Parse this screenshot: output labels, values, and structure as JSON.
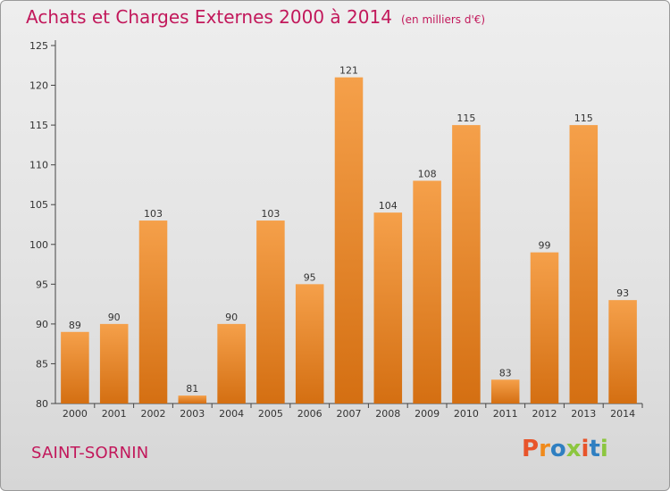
{
  "header": {
    "title": "Achats et Charges Externes 2000 à 2014",
    "subtitle": "(en milliers d'€)"
  },
  "footer": {
    "town": "SAINT-SORNIN",
    "logo_text": "Proxiti"
  },
  "colors": {
    "title": "#c2185b",
    "bar_top": "#f5a04a",
    "bar_bottom": "#d46f12",
    "logo_letters": [
      "#e8542a",
      "#f08a1c",
      "#2f7fc1",
      "#8cc63f",
      "#e8542a",
      "#2f7fc1",
      "#8cc63f"
    ]
  },
  "chart_data": {
    "type": "bar",
    "title": "Achats et Charges Externes 2000 à 2014",
    "subtitle": "(en milliers d'€)",
    "categories": [
      "2000",
      "2001",
      "2002",
      "2003",
      "2004",
      "2005",
      "2006",
      "2007",
      "2008",
      "2009",
      "2010",
      "2011",
      "2012",
      "2013",
      "2014"
    ],
    "values": [
      89,
      90,
      103,
      81,
      90,
      103,
      95,
      121,
      104,
      108,
      115,
      83,
      99,
      115,
      93
    ],
    "ylim": [
      80,
      125
    ],
    "yticks": [
      80,
      85,
      90,
      95,
      100,
      105,
      110,
      115,
      120,
      125
    ],
    "grid": false,
    "data_labels": true
  }
}
